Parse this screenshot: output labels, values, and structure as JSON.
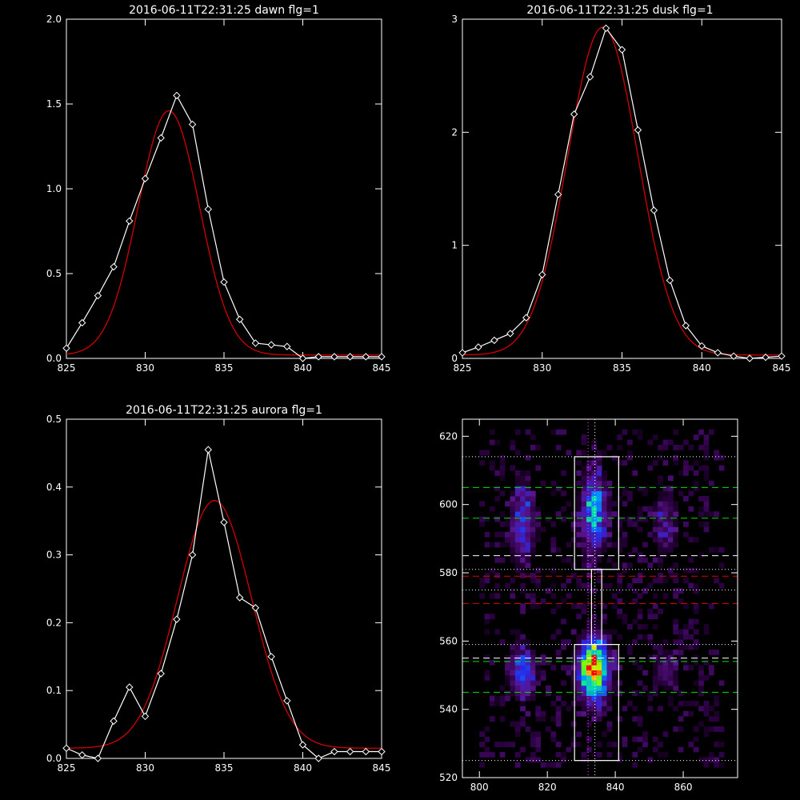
{
  "chart_data": [
    {
      "type": "line",
      "title": "2016-06-11T22:31:25 dawn flg=1",
      "xlim": [
        825,
        845
      ],
      "ylim": [
        0,
        2.0
      ],
      "xticks": [
        825,
        830,
        835,
        840,
        845
      ],
      "yticks": [
        0.0,
        0.5,
        1.0,
        1.5,
        2.0
      ],
      "ytick_labels": [
        "0.0",
        "0.5",
        "1.0",
        "1.5",
        "2.0"
      ],
      "series": [
        {
          "style": "data",
          "color": "#ffffff",
          "markers": "diamond",
          "x": [
            825,
            826,
            827,
            828,
            829,
            830,
            831,
            832,
            833,
            834,
            835,
            836,
            837,
            838,
            839,
            840,
            841,
            842,
            843,
            844,
            845
          ],
          "y": [
            0.06,
            0.21,
            0.37,
            0.54,
            0.81,
            1.06,
            1.3,
            1.55,
            1.38,
            0.88,
            0.45,
            0.23,
            0.09,
            0.08,
            0.07,
            0.0,
            0.01,
            0.01,
            0.01,
            0.01,
            0.01
          ]
        },
        {
          "style": "fit",
          "color": "#d40000",
          "model": "gaussian",
          "amplitude": 1.44,
          "center": 831.5,
          "sigma": 1.95,
          "offset": 0.02
        }
      ]
    },
    {
      "type": "line",
      "title": "2016-06-11T22:31:25 dusk flg=1",
      "xlim": [
        825,
        845
      ],
      "ylim": [
        0,
        3
      ],
      "xticks": [
        825,
        830,
        835,
        840,
        845
      ],
      "yticks": [
        0,
        1,
        2,
        3
      ],
      "ytick_labels": [
        "0",
        "1",
        "2",
        "3"
      ],
      "series": [
        {
          "style": "data",
          "color": "#ffffff",
          "markers": "diamond",
          "x": [
            825,
            826,
            827,
            828,
            829,
            830,
            831,
            832,
            833,
            834,
            835,
            836,
            837,
            838,
            839,
            840,
            841,
            842,
            843,
            844,
            845
          ],
          "y": [
            0.05,
            0.1,
            0.16,
            0.22,
            0.36,
            0.74,
            1.45,
            2.16,
            2.49,
            2.92,
            2.73,
            2.02,
            1.31,
            0.69,
            0.29,
            0.11,
            0.05,
            0.02,
            0.0,
            0.01,
            0.02
          ]
        },
        {
          "style": "fit",
          "color": "#d40000",
          "model": "gaussian",
          "amplitude": 2.9,
          "center": 833.8,
          "sigma": 2.2,
          "offset": 0.03
        }
      ]
    },
    {
      "type": "line",
      "title": "2016-06-11T22:31:25 aurora flg=1",
      "xlim": [
        825,
        845
      ],
      "ylim": [
        0,
        0.5
      ],
      "xticks": [
        825,
        830,
        835,
        840,
        845
      ],
      "yticks": [
        0.0,
        0.1,
        0.2,
        0.3,
        0.4,
        0.5
      ],
      "ytick_labels": [
        "0.0",
        "0.1",
        "0.2",
        "0.3",
        "0.4",
        "0.5"
      ],
      "series": [
        {
          "style": "data",
          "color": "#ffffff",
          "markers": "diamond",
          "x": [
            825,
            826,
            827,
            828,
            829,
            830,
            831,
            832,
            833,
            834,
            835,
            836,
            837,
            838,
            839,
            840,
            841,
            842,
            843,
            844,
            845
          ],
          "y": [
            0.015,
            0.005,
            0.0,
            0.055,
            0.105,
            0.062,
            0.125,
            0.205,
            0.3,
            0.455,
            0.348,
            0.237,
            0.222,
            0.15,
            0.085,
            0.02,
            0.0,
            0.01,
            0.01,
            0.01,
            0.01
          ]
        },
        {
          "style": "fit",
          "color": "#d40000",
          "model": "gaussian",
          "amplitude": 0.365,
          "center": 834.4,
          "sigma": 2.35,
          "offset": 0.015
        }
      ]
    },
    {
      "type": "heatmap",
      "xlim": [
        795,
        876
      ],
      "ylim": [
        520,
        625
      ],
      "xticks": [
        800,
        820,
        840,
        860
      ],
      "yticks": [
        520,
        540,
        560,
        580,
        600,
        620
      ],
      "colormap": "rainbow-on-black",
      "blobs": [
        {
          "x": 833,
          "y": 597,
          "sx": 2.5,
          "sy": 8,
          "intensity": 0.55
        },
        {
          "x": 833,
          "y": 551,
          "sx": 2.8,
          "sy": 6,
          "intensity": 1.0
        },
        {
          "x": 812,
          "y": 594,
          "sx": 2.5,
          "sy": 8,
          "intensity": 0.35
        },
        {
          "x": 812,
          "y": 550,
          "sx": 2.5,
          "sy": 5,
          "intensity": 0.42
        },
        {
          "x": 854,
          "y": 594,
          "sx": 2.5,
          "sy": 7,
          "intensity": 0.2
        },
        {
          "x": 854,
          "y": 551,
          "sx": 2.5,
          "sy": 4,
          "intensity": 0.18
        }
      ],
      "boxes": [
        {
          "x": [
            828,
            841
          ],
          "y": [
            581,
            614
          ],
          "color": "#ffffff"
        },
        {
          "x": [
            828,
            841
          ],
          "y": [
            525,
            559
          ],
          "color": "#ffffff"
        },
        {
          "x": [
            833,
            836
          ],
          "y": [
            559,
            581
          ],
          "color": "#ffffff"
        }
      ],
      "hlines": [
        {
          "y": 605,
          "style": "dashed",
          "color": "#00e000"
        },
        {
          "y": 596,
          "style": "dashed",
          "color": "#00e000"
        },
        {
          "y": 585,
          "style": "dashed",
          "color": "#ffffff"
        },
        {
          "y": 579,
          "style": "dashed",
          "color": "#e00000"
        },
        {
          "y": 571,
          "style": "dashed",
          "color": "#e00000"
        },
        {
          "y": 555,
          "style": "dashed",
          "color": "#ffffff"
        },
        {
          "y": 554,
          "style": "dashed",
          "color": "#00e000"
        },
        {
          "y": 545,
          "style": "dashed",
          "color": "#00e000"
        },
        {
          "y": 614,
          "style": "dotted",
          "color": "#ffffff"
        },
        {
          "y": 581,
          "style": "dotted",
          "color": "#ffffff"
        },
        {
          "y": 575,
          "style": "dotted",
          "color": "#ffffff"
        },
        {
          "y": 559,
          "style": "dotted",
          "color": "#ffffff"
        },
        {
          "y": 525,
          "style": "dotted",
          "color": "#ffffff"
        }
      ],
      "vlines": [
        {
          "x": 832,
          "style": "dotted",
          "color": "#ff44ff"
        },
        {
          "x": 834,
          "style": "dotted",
          "color": "#ffffff"
        }
      ]
    }
  ]
}
